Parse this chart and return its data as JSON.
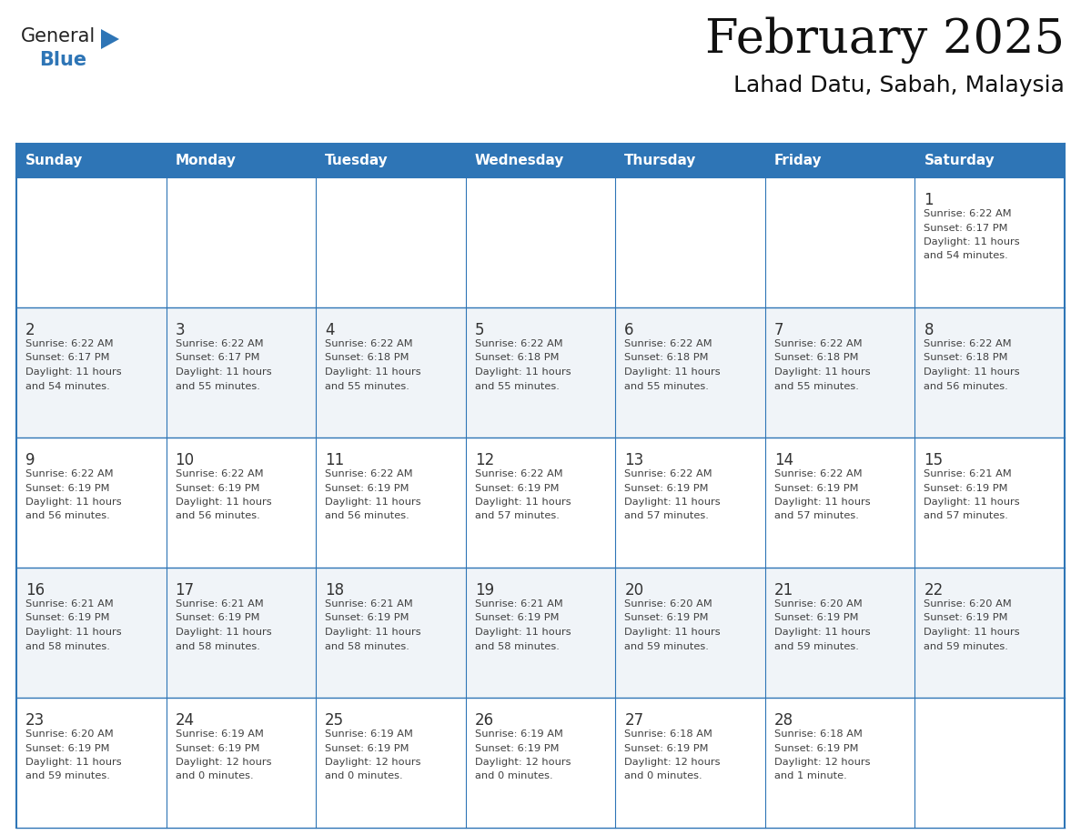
{
  "title": "February 2025",
  "subtitle": "Lahad Datu, Sabah, Malaysia",
  "header_bg": "#2E75B6",
  "header_text_color": "#FFFFFF",
  "border_color": "#2E75B6",
  "text_color": "#404040",
  "day_number_color": "#333333",
  "weekdays": [
    "Sunday",
    "Monday",
    "Tuesday",
    "Wednesday",
    "Thursday",
    "Friday",
    "Saturday"
  ],
  "calendar": [
    [
      null,
      null,
      null,
      null,
      null,
      null,
      1
    ],
    [
      2,
      3,
      4,
      5,
      6,
      7,
      8
    ],
    [
      9,
      10,
      11,
      12,
      13,
      14,
      15
    ],
    [
      16,
      17,
      18,
      19,
      20,
      21,
      22
    ],
    [
      23,
      24,
      25,
      26,
      27,
      28,
      null
    ]
  ],
  "cell_data": {
    "1": {
      "sunrise": "6:22 AM",
      "sunset": "6:17 PM",
      "daylight_h": "11 hours",
      "daylight_m": "and 54 minutes."
    },
    "2": {
      "sunrise": "6:22 AM",
      "sunset": "6:17 PM",
      "daylight_h": "11 hours",
      "daylight_m": "and 54 minutes."
    },
    "3": {
      "sunrise": "6:22 AM",
      "sunset": "6:17 PM",
      "daylight_h": "11 hours",
      "daylight_m": "and 55 minutes."
    },
    "4": {
      "sunrise": "6:22 AM",
      "sunset": "6:18 PM",
      "daylight_h": "11 hours",
      "daylight_m": "and 55 minutes."
    },
    "5": {
      "sunrise": "6:22 AM",
      "sunset": "6:18 PM",
      "daylight_h": "11 hours",
      "daylight_m": "and 55 minutes."
    },
    "6": {
      "sunrise": "6:22 AM",
      "sunset": "6:18 PM",
      "daylight_h": "11 hours",
      "daylight_m": "and 55 minutes."
    },
    "7": {
      "sunrise": "6:22 AM",
      "sunset": "6:18 PM",
      "daylight_h": "11 hours",
      "daylight_m": "and 55 minutes."
    },
    "8": {
      "sunrise": "6:22 AM",
      "sunset": "6:18 PM",
      "daylight_h": "11 hours",
      "daylight_m": "and 56 minutes."
    },
    "9": {
      "sunrise": "6:22 AM",
      "sunset": "6:19 PM",
      "daylight_h": "11 hours",
      "daylight_m": "and 56 minutes."
    },
    "10": {
      "sunrise": "6:22 AM",
      "sunset": "6:19 PM",
      "daylight_h": "11 hours",
      "daylight_m": "and 56 minutes."
    },
    "11": {
      "sunrise": "6:22 AM",
      "sunset": "6:19 PM",
      "daylight_h": "11 hours",
      "daylight_m": "and 56 minutes."
    },
    "12": {
      "sunrise": "6:22 AM",
      "sunset": "6:19 PM",
      "daylight_h": "11 hours",
      "daylight_m": "and 57 minutes."
    },
    "13": {
      "sunrise": "6:22 AM",
      "sunset": "6:19 PM",
      "daylight_h": "11 hours",
      "daylight_m": "and 57 minutes."
    },
    "14": {
      "sunrise": "6:22 AM",
      "sunset": "6:19 PM",
      "daylight_h": "11 hours",
      "daylight_m": "and 57 minutes."
    },
    "15": {
      "sunrise": "6:21 AM",
      "sunset": "6:19 PM",
      "daylight_h": "11 hours",
      "daylight_m": "and 57 minutes."
    },
    "16": {
      "sunrise": "6:21 AM",
      "sunset": "6:19 PM",
      "daylight_h": "11 hours",
      "daylight_m": "and 58 minutes."
    },
    "17": {
      "sunrise": "6:21 AM",
      "sunset": "6:19 PM",
      "daylight_h": "11 hours",
      "daylight_m": "and 58 minutes."
    },
    "18": {
      "sunrise": "6:21 AM",
      "sunset": "6:19 PM",
      "daylight_h": "11 hours",
      "daylight_m": "and 58 minutes."
    },
    "19": {
      "sunrise": "6:21 AM",
      "sunset": "6:19 PM",
      "daylight_h": "11 hours",
      "daylight_m": "and 58 minutes."
    },
    "20": {
      "sunrise": "6:20 AM",
      "sunset": "6:19 PM",
      "daylight_h": "11 hours",
      "daylight_m": "and 59 minutes."
    },
    "21": {
      "sunrise": "6:20 AM",
      "sunset": "6:19 PM",
      "daylight_h": "11 hours",
      "daylight_m": "and 59 minutes."
    },
    "22": {
      "sunrise": "6:20 AM",
      "sunset": "6:19 PM",
      "daylight_h": "11 hours",
      "daylight_m": "and 59 minutes."
    },
    "23": {
      "sunrise": "6:20 AM",
      "sunset": "6:19 PM",
      "daylight_h": "11 hours",
      "daylight_m": "and 59 minutes."
    },
    "24": {
      "sunrise": "6:19 AM",
      "sunset": "6:19 PM",
      "daylight_h": "12 hours",
      "daylight_m": "and 0 minutes."
    },
    "25": {
      "sunrise": "6:19 AM",
      "sunset": "6:19 PM",
      "daylight_h": "12 hours",
      "daylight_m": "and 0 minutes."
    },
    "26": {
      "sunrise": "6:19 AM",
      "sunset": "6:19 PM",
      "daylight_h": "12 hours",
      "daylight_m": "and 0 minutes."
    },
    "27": {
      "sunrise": "6:18 AM",
      "sunset": "6:19 PM",
      "daylight_h": "12 hours",
      "daylight_m": "and 0 minutes."
    },
    "28": {
      "sunrise": "6:18 AM",
      "sunset": "6:19 PM",
      "daylight_h": "12 hours",
      "daylight_m": "and 1 minute."
    }
  }
}
